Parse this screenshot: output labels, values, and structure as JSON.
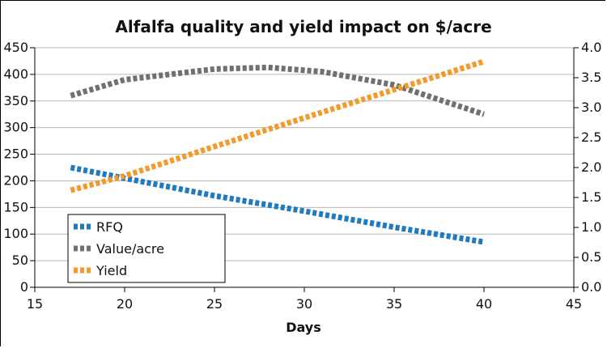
{
  "chart_data": {
    "type": "line",
    "title": "Alfalfa quality and yield impact on $/acre",
    "xlabel": "Days",
    "x_ticks": [
      15,
      20,
      25,
      30,
      35,
      40,
      45
    ],
    "left_y_ticks": [
      0,
      50,
      100,
      150,
      200,
      250,
      300,
      350,
      400,
      450
    ],
    "right_y_ticks": [
      "0.0",
      "0.5",
      "1.0",
      "1.5",
      "2.0",
      "2.5",
      "3.0",
      "3.5",
      "4.0"
    ],
    "xlim": [
      15,
      45
    ],
    "left_ylim": [
      0,
      450
    ],
    "right_ylim": [
      0,
      4.0
    ],
    "grid": "horizontal",
    "legend_position": "bottom-left",
    "series": [
      {
        "name": "RFQ",
        "axis": "left",
        "color": "#1f7bbf",
        "x": [
          17,
          20,
          25,
          30,
          35,
          40
        ],
        "y": [
          225,
          205,
          172,
          143,
          113,
          85
        ]
      },
      {
        "name": "Value/acre",
        "axis": "left",
        "color": "#707070",
        "x": [
          17,
          20,
          25,
          28,
          31,
          35,
          40
        ],
        "y": [
          360,
          390,
          410,
          413,
          405,
          380,
          325
        ]
      },
      {
        "name": "Yield",
        "axis": "right",
        "color": "#f39a2a",
        "x": [
          17,
          20,
          25,
          30,
          35,
          40
        ],
        "y": [
          1.62,
          1.86,
          2.35,
          2.83,
          3.3,
          3.77
        ]
      }
    ]
  }
}
